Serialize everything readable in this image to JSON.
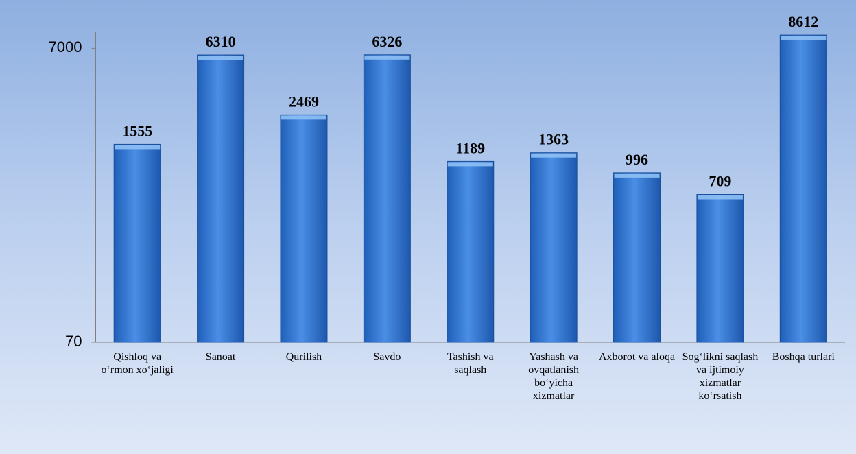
{
  "chart_data": {
    "type": "bar",
    "categories": [
      "Qishloq va o‘rmon xo‘jaligi",
      "Sanoat",
      "Qurilish",
      "Savdo",
      "Tashish va saqlash",
      "Yashash va ovqatlanish bo‘yicha xizmatlar",
      "Axborot va aloqa",
      "Sog‘likni saqlash va ijtimoiy xizmatlar ko‘rsatish",
      "Boshqa turlari"
    ],
    "values": [
      1555,
      6310,
      2469,
      6326,
      1189,
      1363,
      996,
      709,
      8612
    ],
    "color": "#3a7bd5",
    "ylim": [
      70,
      9000
    ],
    "yticks": [
      70,
      7000
    ],
    "log_scale": true,
    "grid": false
  }
}
